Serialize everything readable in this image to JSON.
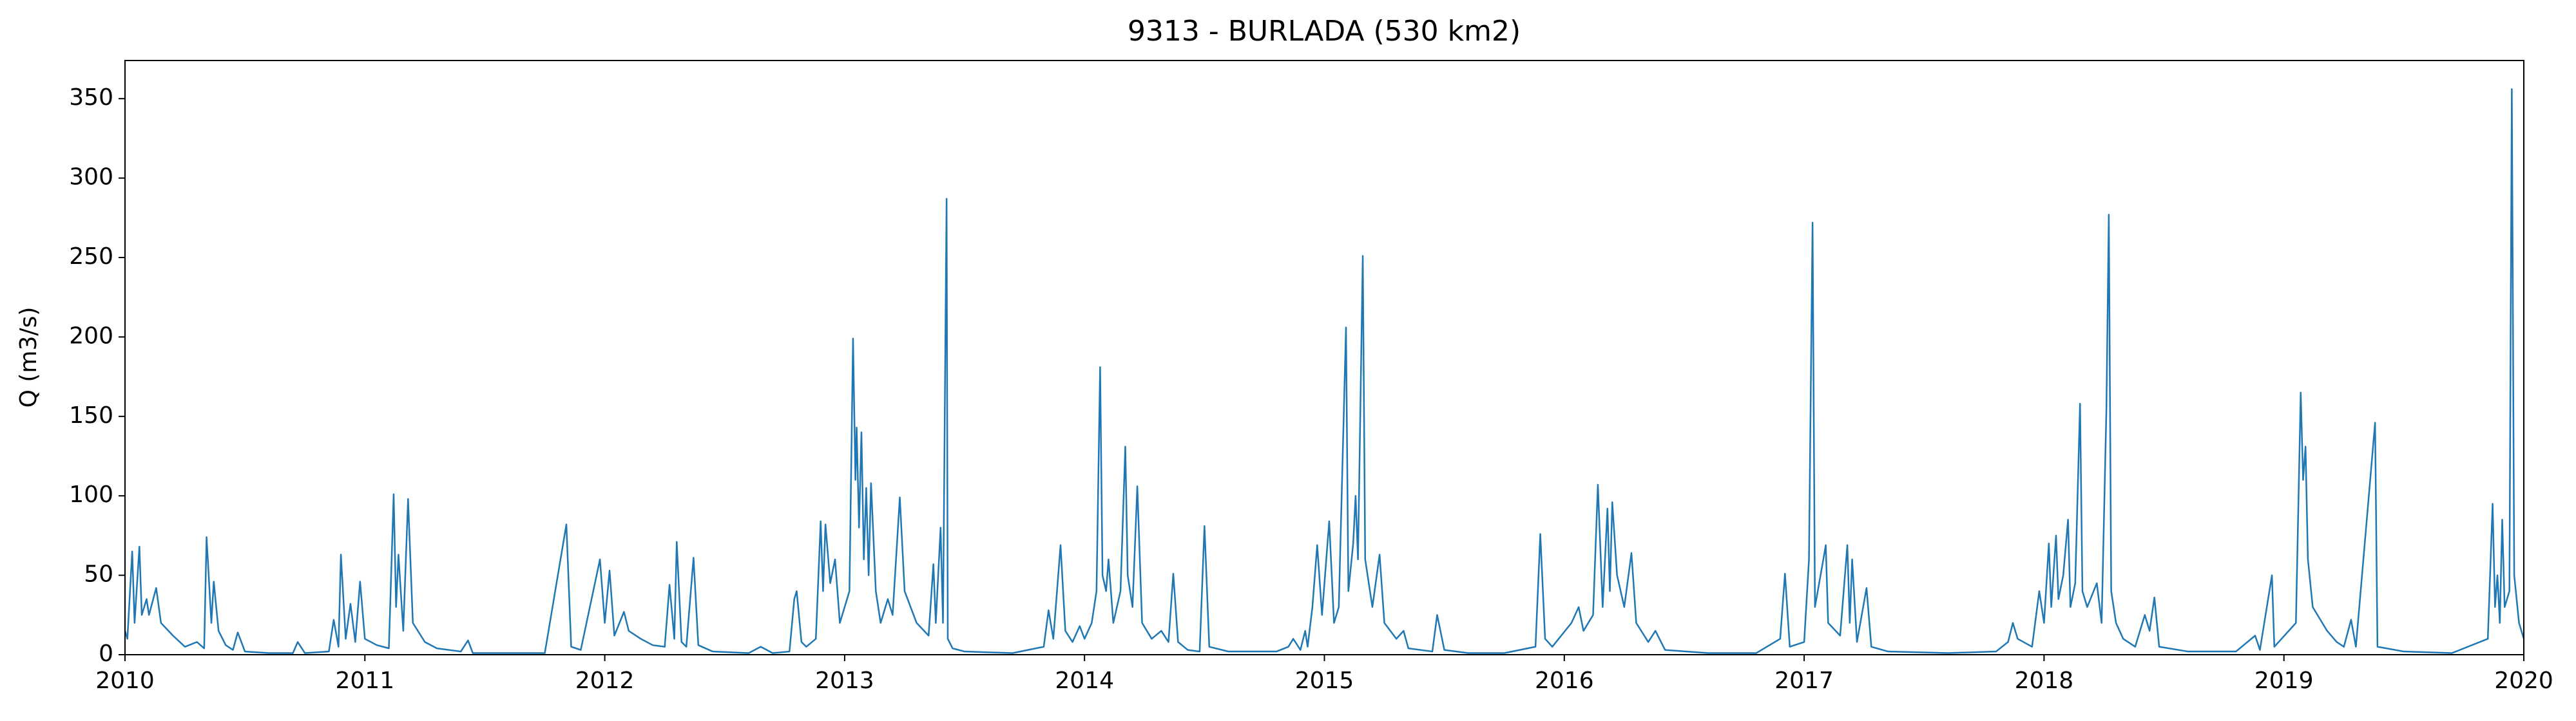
{
  "chart_data": {
    "type": "line",
    "title": "9313 - BURLADA (530 km2)",
    "ylabel": "Q (m3/s)",
    "color": "#1f77b4",
    "xlim": [
      2010,
      2020
    ],
    "xticks": [
      2010,
      2011,
      2012,
      2013,
      2014,
      2015,
      2016,
      2017,
      2018,
      2019,
      2020
    ],
    "ylim": [
      0,
      374
    ],
    "yticks": [
      0,
      50,
      100,
      150,
      200,
      250,
      300,
      350
    ],
    "grid": false,
    "x": [
      2010.0,
      2010.01,
      2010.03,
      2010.04,
      2010.06,
      2010.07,
      2010.09,
      2010.1,
      2010.13,
      2010.15,
      2010.2,
      2010.25,
      2010.3,
      2010.33,
      2010.34,
      2010.36,
      2010.37,
      2010.39,
      2010.42,
      2010.45,
      2010.47,
      2010.5,
      2010.6,
      2010.7,
      2010.72,
      2010.75,
      2010.85,
      2010.87,
      2010.89,
      2010.9,
      2010.92,
      2010.94,
      2010.96,
      2010.98,
      2011.0,
      2011.05,
      2011.1,
      2011.12,
      2011.13,
      2011.14,
      2011.16,
      2011.18,
      2011.2,
      2011.25,
      2011.3,
      2011.4,
      2011.43,
      2011.45,
      2011.6,
      2011.75,
      2011.84,
      2011.86,
      2011.9,
      2011.98,
      2012.0,
      2012.02,
      2012.04,
      2012.08,
      2012.1,
      2012.15,
      2012.2,
      2012.25,
      2012.27,
      2012.29,
      2012.3,
      2012.32,
      2012.34,
      2012.37,
      2012.39,
      2012.45,
      2012.6,
      2012.65,
      2012.7,
      2012.77,
      2012.79,
      2012.8,
      2012.82,
      2012.84,
      2012.88,
      2012.9,
      2012.91,
      2012.92,
      2012.94,
      2012.96,
      2012.98,
      2013.02,
      2013.035,
      2013.045,
      2013.05,
      2013.06,
      2013.07,
      2013.08,
      2013.09,
      2013.1,
      2013.11,
      2013.13,
      2013.15,
      2013.18,
      2013.2,
      2013.23,
      2013.25,
      2013.3,
      2013.35,
      2013.37,
      2013.38,
      2013.4,
      2013.41,
      2013.425,
      2013.43,
      2013.45,
      2013.5,
      2013.7,
      2013.83,
      2013.85,
      2013.87,
      2013.9,
      2013.92,
      2013.95,
      2013.98,
      2014.0,
      2014.03,
      2014.05,
      2014.065,
      2014.075,
      2014.09,
      2014.1,
      2014.12,
      2014.15,
      2014.17,
      2014.18,
      2014.2,
      2014.22,
      2014.24,
      2014.28,
      2014.32,
      2014.35,
      2014.37,
      2014.39,
      2014.43,
      2014.48,
      2014.5,
      2014.52,
      2014.6,
      2014.8,
      2014.85,
      2014.87,
      2014.9,
      2014.92,
      2014.93,
      2014.95,
      2014.97,
      2014.99,
      2015.02,
      2015.04,
      2015.06,
      2015.09,
      2015.1,
      2015.12,
      2015.13,
      2015.14,
      2015.16,
      2015.17,
      2015.2,
      2015.23,
      2015.25,
      2015.3,
      2015.33,
      2015.35,
      2015.45,
      2015.47,
      2015.5,
      2015.6,
      2015.75,
      2015.88,
      2015.9,
      2015.92,
      2015.95,
      2016.03,
      2016.06,
      2016.08,
      2016.12,
      2016.14,
      2016.16,
      2016.18,
      2016.19,
      2016.2,
      2016.22,
      2016.25,
      2016.28,
      2016.3,
      2016.35,
      2016.38,
      2016.42,
      2016.6,
      2016.8,
      2016.9,
      2016.92,
      2016.94,
      2017.0,
      2017.02,
      2017.035,
      2017.045,
      2017.08,
      2017.09,
      2017.1,
      2017.15,
      2017.18,
      2017.19,
      2017.2,
      2017.22,
      2017.26,
      2017.28,
      2017.35,
      2017.6,
      2017.8,
      2017.85,
      2017.87,
      2017.89,
      2017.95,
      2017.98,
      2018.0,
      2018.02,
      2018.03,
      2018.05,
      2018.06,
      2018.08,
      2018.1,
      2018.11,
      2018.13,
      2018.15,
      2018.16,
      2018.18,
      2018.22,
      2018.24,
      2018.26,
      2018.27,
      2018.28,
      2018.3,
      2018.33,
      2018.38,
      2018.42,
      2018.44,
      2018.46,
      2018.48,
      2018.6,
      2018.8,
      2018.88,
      2018.9,
      2018.95,
      2018.96,
      2019.05,
      2019.07,
      2019.08,
      2019.09,
      2019.1,
      2019.12,
      2019.18,
      2019.22,
      2019.25,
      2019.28,
      2019.3,
      2019.38,
      2019.39,
      2019.5,
      2019.7,
      2019.85,
      2019.87,
      2019.88,
      2019.89,
      2019.9,
      2019.91,
      2019.92,
      2019.94,
      2019.95,
      2019.96,
      2019.98,
      2020.0
    ],
    "values": [
      15,
      10,
      65,
      20,
      68,
      25,
      35,
      25,
      42,
      20,
      12,
      5,
      8,
      4,
      74,
      20,
      46,
      15,
      6,
      3,
      14,
      2,
      1,
      1,
      8,
      1,
      2,
      22,
      5,
      63,
      10,
      32,
      8,
      46,
      10,
      6,
      4,
      101,
      30,
      63,
      15,
      98,
      20,
      8,
      4,
      2,
      9,
      1,
      1,
      1,
      82,
      5,
      3,
      60,
      20,
      53,
      12,
      27,
      15,
      10,
      6,
      5,
      44,
      10,
      71,
      8,
      5,
      61,
      6,
      2,
      1,
      5,
      1,
      2,
      35,
      40,
      8,
      5,
      10,
      84,
      40,
      82,
      45,
      60,
      20,
      40,
      199,
      110,
      143,
      80,
      140,
      60,
      105,
      50,
      108,
      40,
      20,
      35,
      25,
      99,
      40,
      20,
      12,
      57,
      20,
      80,
      20,
      287,
      10,
      4,
      2,
      1,
      5,
      28,
      10,
      69,
      15,
      8,
      18,
      10,
      20,
      40,
      181,
      50,
      40,
      60,
      20,
      40,
      131,
      50,
      30,
      106,
      20,
      10,
      15,
      8,
      51,
      8,
      3,
      2,
      81,
      5,
      2,
      2,
      5,
      10,
      3,
      15,
      5,
      30,
      69,
      25,
      84,
      20,
      30,
      206,
      40,
      70,
      100,
      60,
      251,
      60,
      30,
      63,
      20,
      10,
      15,
      4,
      2,
      25,
      3,
      1,
      1,
      5,
      76,
      10,
      5,
      20,
      30,
      15,
      25,
      107,
      30,
      92,
      40,
      96,
      50,
      30,
      64,
      20,
      8,
      15,
      3,
      1,
      1,
      10,
      51,
      5,
      8,
      60,
      272,
      30,
      60,
      69,
      20,
      12,
      69,
      20,
      60,
      8,
      42,
      5,
      2,
      1,
      2,
      8,
      20,
      10,
      5,
      40,
      20,
      70,
      30,
      75,
      35,
      50,
      85,
      30,
      45,
      158,
      40,
      30,
      45,
      20,
      155,
      277,
      40,
      20,
      10,
      5,
      25,
      15,
      36,
      5,
      2,
      2,
      12,
      3,
      50,
      5,
      20,
      165,
      110,
      131,
      60,
      30,
      15,
      8,
      5,
      22,
      5,
      146,
      5,
      2,
      1,
      10,
      95,
      30,
      50,
      20,
      85,
      30,
      40,
      356,
      50,
      20,
      10
    ]
  }
}
